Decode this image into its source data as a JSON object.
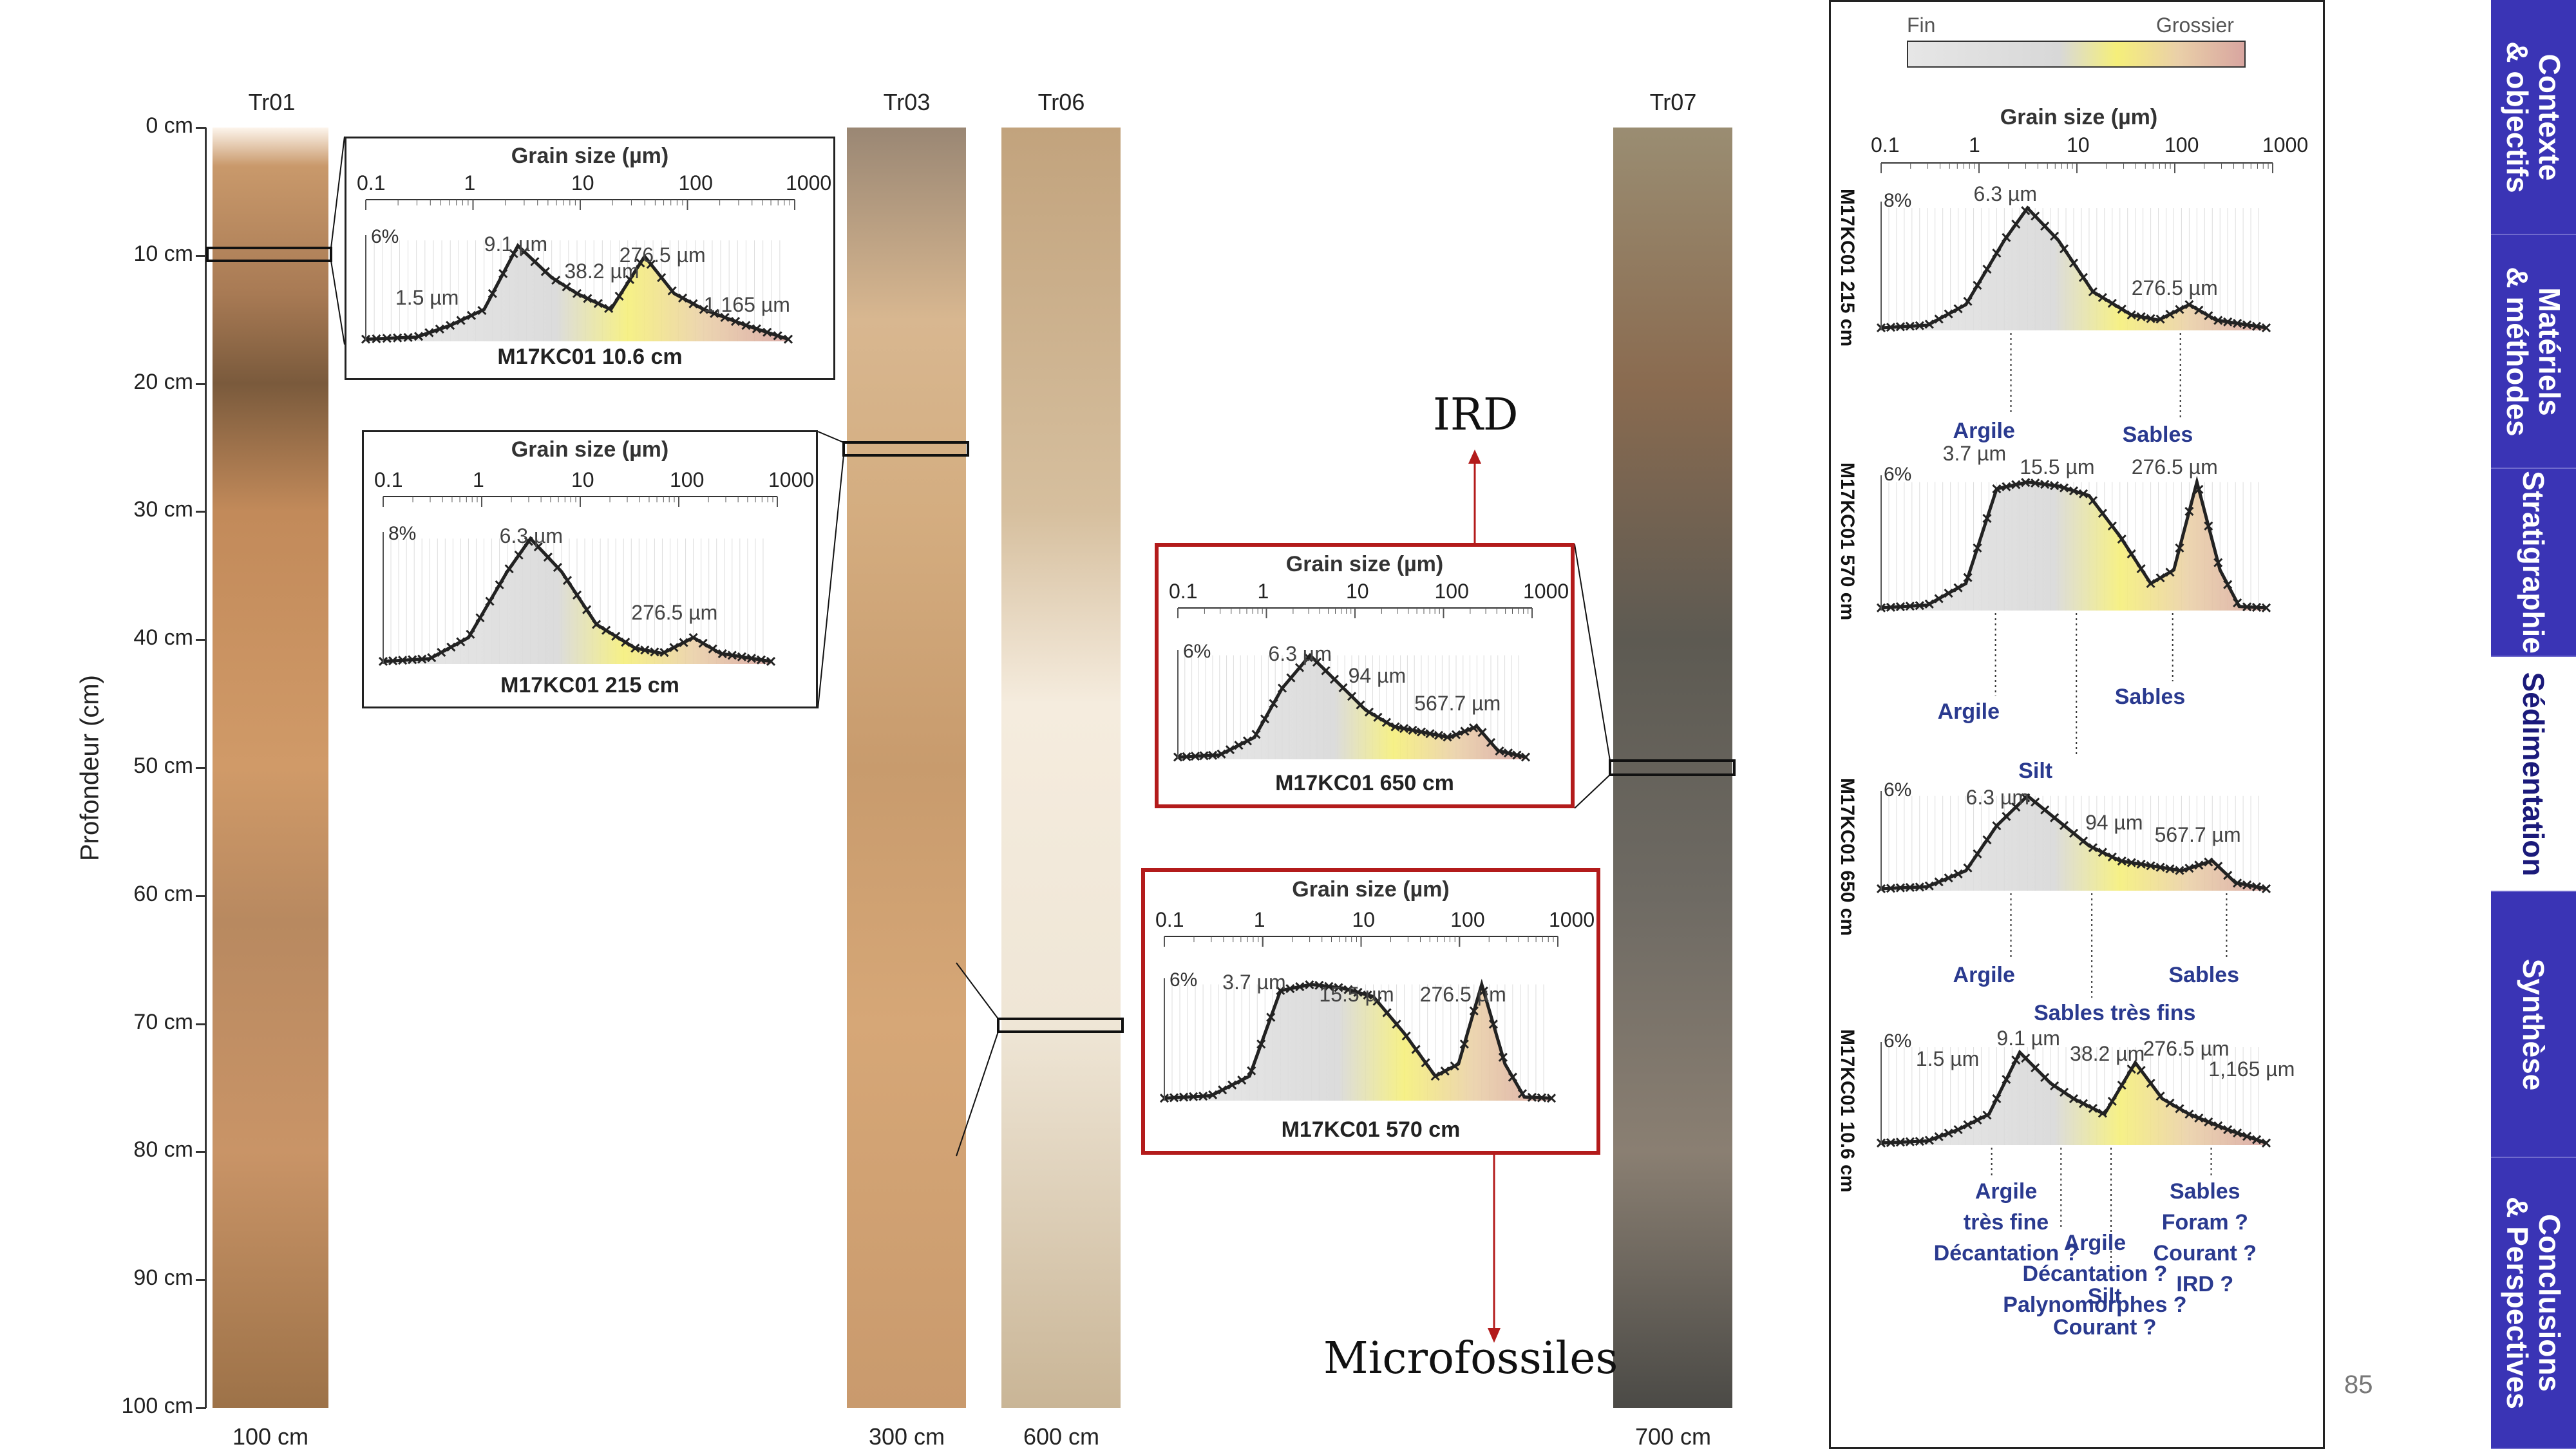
{
  "page": {
    "number": "85"
  },
  "depth_axis": {
    "title": "Profondeur (cm)",
    "ticks": [
      "0 cm",
      "10 cm",
      "20 cm",
      "30 cm",
      "40 cm",
      "50 cm",
      "60 cm",
      "70 cm",
      "80 cm",
      "90 cm",
      "100 cm"
    ]
  },
  "cores": [
    {
      "name": "Tr01",
      "depth": "100 cm"
    },
    {
      "name": "Tr03",
      "depth": "300 cm"
    },
    {
      "name": "Tr06",
      "depth": "600 cm"
    },
    {
      "name": "Tr07",
      "depth": "700 cm"
    }
  ],
  "grain_axis": {
    "title": "Grain size (µm)",
    "labels": [
      "0.1",
      "1",
      "10",
      "100",
      "1000"
    ]
  },
  "insets": [
    {
      "sample": "M17KC01 10.6 cm",
      "pct": "6%",
      "peaks": [
        "1.5 µm",
        "9.1 µm",
        "38.2 µm",
        "276.5 µm",
        "1,165 µm"
      ]
    },
    {
      "sample": "M17KC01 215 cm",
      "pct": "8%",
      "peaks": [
        "6.3 µm",
        "276.5 µm"
      ]
    },
    {
      "sample": "M17KC01 650 cm",
      "pct": "6%",
      "peaks": [
        "6.3 µm",
        "94 µm",
        "567.7 µm"
      ]
    },
    {
      "sample": "M17KC01 570 cm",
      "pct": "6%",
      "peaks": [
        "3.7 µm",
        "15.5 µm",
        "276.5 µm"
      ]
    }
  ],
  "arrows": {
    "up": "IRD",
    "down": "Microfossiles"
  },
  "sidebar": {
    "gradient_fine": "Fin",
    "gradient_coarse": "Grossier",
    "grain_title": "Grain size (µm)",
    "grain_labels": [
      "0.1",
      "1",
      "10",
      "100",
      "1000"
    ],
    "panels": [
      {
        "sample": "M17KC01 215 cm",
        "pct": "8%",
        "peaks": [
          "6.3 µm",
          "276.5 µm"
        ],
        "interps": [
          "Argile",
          "Sables"
        ]
      },
      {
        "sample": "M17KC01 570 cm",
        "pct": "6%",
        "peaks": [
          "3.7 µm",
          "15.5 µm",
          "276.5 µm"
        ],
        "interps": [
          "Argile",
          "Silt",
          "Sables"
        ]
      },
      {
        "sample": "M17KC01 650 cm",
        "pct": "6%",
        "peaks": [
          "6.3 µm",
          "94 µm",
          "567.7 µm"
        ],
        "interps": [
          "Argile",
          "Sables très fins",
          "Sables"
        ]
      },
      {
        "sample": "M17KC01 10.6 cm",
        "pct": "6%",
        "peaks": [
          "1.5 µm",
          "9.1 µm",
          "38.2 µm",
          "276.5 µm",
          "1,165 µm"
        ],
        "interps": [
          "Argile\ntrès fine\nDécantation ?",
          "Argile\nDécantation ?\nPalynomorphes ?",
          "Silt\nCourant ?",
          "Sables\nForam ?\nCourant ?\nIRD ?"
        ]
      }
    ]
  },
  "nav": [
    {
      "label": "Contexte\n& objectifs",
      "active": false
    },
    {
      "label": "Matériels\n& méthodes",
      "active": false
    },
    {
      "label": "Stratigraphie",
      "active": false
    },
    {
      "label": "Sédimentation",
      "active": true
    },
    {
      "label": "Synthèse",
      "active": false
    },
    {
      "label": "Conclusions\n& Perspectives",
      "active": false
    }
  ],
  "colors": {
    "nav_bg": "#3a34b5",
    "nav_text_inactive": "#ffffff",
    "nav_text_active": "#1b1a7a",
    "red_box": "#b31b1b",
    "interp_text": "#2a3a8f"
  }
}
